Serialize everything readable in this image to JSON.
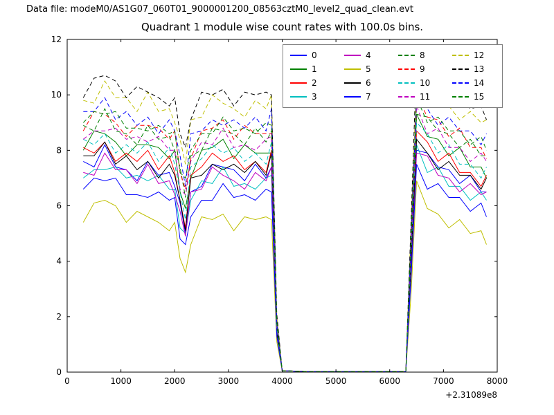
{
  "header": {
    "data_file": "Data file: modeM0/AS1G07_060T01_9000001200_08563cztM0_level2_quad_clean.evt"
  },
  "chart_data": {
    "type": "line",
    "title": "Quadrant 1 module wise count rates with 100.0s bins.",
    "xlabel": "",
    "ylabel": "",
    "xlim": [
      0,
      8000
    ],
    "ylim": [
      0,
      12
    ],
    "xticks": [
      "0",
      "1000",
      "2000",
      "3000",
      "4000",
      "5000",
      "6000",
      "7000",
      "8000"
    ],
    "yticks": [
      "0",
      "2",
      "4",
      "6",
      "8",
      "10",
      "12"
    ],
    "x_offset_label": "+2.31089e8",
    "grid": false,
    "legend_position": "upper center, 4 columns",
    "legend_columns": 4,
    "x": [
      300,
      500,
      700,
      900,
      1100,
      1300,
      1500,
      1700,
      1900,
      2000,
      2100,
      2200,
      2300,
      2500,
      2700,
      2900,
      3100,
      3300,
      3500,
      3700,
      3800,
      3900,
      4000,
      4500,
      5000,
      5500,
      6000,
      6300,
      6400,
      6500,
      6700,
      6900,
      7100,
      7300,
      7500,
      7700,
      7800
    ],
    "series": [
      {
        "name": "0",
        "color": "#0000ff",
        "style": "solid",
        "values": [
          7.6,
          7.4,
          8.2,
          7.4,
          7.3,
          6.9,
          7.6,
          7.1,
          7.2,
          6.7,
          6.1,
          5.0,
          6.5,
          6.7,
          7.5,
          7.4,
          7.3,
          6.9,
          7.5,
          7.0,
          7.4,
          1.5,
          0.05,
          0.02,
          0.02,
          0.02,
          0.02,
          0.02,
          4.0,
          8.0,
          7.9,
          7.4,
          7.3,
          6.8,
          7.1,
          6.5,
          6.5
        ]
      },
      {
        "name": "1",
        "color": "#008000",
        "style": "solid",
        "values": [
          8.0,
          8.7,
          8.6,
          8.3,
          7.8,
          8.2,
          8.2,
          8.1,
          7.7,
          8.0,
          6.5,
          5.9,
          7.0,
          8.0,
          8.1,
          8.4,
          7.7,
          8.2,
          7.9,
          7.9,
          7.9,
          1.6,
          0.05,
          0.02,
          0.02,
          0.02,
          0.02,
          0.02,
          4.4,
          9.3,
          8.5,
          8.4,
          7.8,
          8.1,
          7.4,
          7.4,
          7.0
        ]
      },
      {
        "name": "2",
        "color": "#ff0000",
        "style": "solid",
        "values": [
          8.1,
          7.9,
          8.3,
          7.6,
          7.9,
          7.6,
          8.0,
          7.3,
          7.8,
          7.2,
          6.2,
          5.2,
          7.1,
          7.4,
          7.9,
          7.6,
          7.8,
          7.3,
          7.6,
          7.2,
          8.0,
          1.5,
          0.05,
          0.02,
          0.02,
          0.02,
          0.02,
          0.02,
          4.2,
          8.7,
          8.3,
          7.6,
          7.9,
          7.2,
          7.2,
          6.7,
          7.1
        ]
      },
      {
        "name": "3",
        "color": "#00bfbf",
        "style": "solid",
        "values": [
          7.0,
          7.3,
          7.3,
          7.4,
          7.0,
          7.1,
          6.9,
          7.1,
          6.6,
          6.6,
          5.2,
          5.0,
          6.2,
          6.9,
          6.8,
          7.4,
          6.7,
          6.8,
          6.6,
          7.0,
          7.1,
          1.4,
          0.05,
          0.02,
          0.02,
          0.02,
          0.02,
          0.02,
          3.8,
          8.2,
          7.2,
          7.4,
          6.7,
          6.7,
          6.2,
          6.5,
          6.2
        ]
      },
      {
        "name": "4",
        "color": "#bf00bf",
        "style": "solid",
        "values": [
          7.2,
          7.1,
          7.9,
          7.3,
          7.3,
          6.8,
          7.5,
          6.8,
          6.9,
          6.4,
          5.8,
          4.9,
          6.5,
          6.6,
          7.4,
          7.1,
          6.9,
          6.6,
          7.2,
          6.9,
          7.4,
          1.4,
          0.05,
          0.02,
          0.02,
          0.02,
          0.02,
          0.02,
          3.8,
          7.9,
          7.8,
          7.1,
          7.0,
          6.5,
          6.8,
          6.4,
          6.5
        ]
      },
      {
        "name": "5",
        "color": "#bfbf00",
        "style": "solid",
        "values": [
          5.4,
          6.1,
          6.2,
          6.0,
          5.4,
          5.8,
          5.6,
          5.4,
          5.1,
          5.4,
          4.1,
          3.6,
          4.6,
          5.6,
          5.5,
          5.7,
          5.1,
          5.6,
          5.5,
          5.6,
          5.5,
          1.1,
          0.05,
          0.02,
          0.02,
          0.02,
          0.02,
          0.02,
          2.9,
          6.9,
          5.9,
          5.7,
          5.2,
          5.5,
          5.0,
          5.1,
          4.6
        ]
      },
      {
        "name": "6",
        "color": "#000000",
        "style": "solid",
        "values": [
          7.8,
          7.8,
          8.3,
          7.5,
          7.8,
          7.3,
          7.6,
          7.0,
          7.5,
          7.1,
          6.2,
          5.1,
          7.0,
          7.1,
          7.5,
          7.3,
          7.5,
          7.2,
          7.6,
          7.1,
          7.9,
          1.5,
          0.05,
          0.02,
          0.02,
          0.02,
          0.02,
          0.02,
          4.1,
          8.4,
          7.9,
          7.3,
          7.6,
          7.1,
          7.1,
          6.6,
          7.0
        ]
      },
      {
        "name": "7",
        "color": "#0000ff",
        "style": "solid",
        "values": [
          6.6,
          7.0,
          6.9,
          7.0,
          6.4,
          6.4,
          6.3,
          6.5,
          6.2,
          6.3,
          4.8,
          4.6,
          5.6,
          6.2,
          6.2,
          6.8,
          6.3,
          6.4,
          6.2,
          6.6,
          6.5,
          1.3,
          0.05,
          0.02,
          0.02,
          0.02,
          0.02,
          0.02,
          3.5,
          7.5,
          6.6,
          6.8,
          6.3,
          6.3,
          5.8,
          6.1,
          5.6
        ]
      },
      {
        "name": "8",
        "color": "#008000",
        "style": "dashed",
        "values": [
          8.9,
          8.7,
          9.5,
          8.7,
          8.6,
          8.2,
          8.9,
          8.4,
          8.5,
          8.0,
          7.4,
          6.3,
          7.8,
          8.0,
          8.8,
          8.7,
          8.6,
          8.2,
          8.8,
          8.3,
          8.7,
          1.7,
          0.05,
          0.02,
          0.02,
          0.02,
          0.02,
          0.02,
          4.7,
          9.3,
          9.2,
          8.7,
          8.6,
          8.1,
          8.4,
          7.8,
          7.8
        ]
      },
      {
        "name": "9",
        "color": "#ff0000",
        "style": "dashed",
        "values": [
          8.7,
          9.4,
          9.3,
          9.0,
          8.5,
          8.9,
          8.9,
          8.8,
          8.4,
          8.7,
          7.2,
          6.6,
          7.7,
          8.7,
          8.8,
          9.1,
          8.4,
          8.9,
          8.6,
          8.6,
          8.6,
          1.8,
          0.05,
          0.02,
          0.02,
          0.02,
          0.02,
          0.02,
          4.9,
          10.0,
          9.2,
          9.1,
          8.5,
          8.8,
          8.1,
          8.1,
          7.7
        ]
      },
      {
        "name": "10",
        "color": "#00bfbf",
        "style": "dashed",
        "values": [
          8.4,
          8.2,
          8.6,
          7.9,
          8.2,
          7.9,
          8.3,
          7.6,
          8.1,
          7.5,
          6.5,
          5.5,
          7.4,
          7.7,
          8.2,
          7.9,
          8.1,
          7.6,
          7.9,
          7.5,
          8.3,
          1.6,
          0.05,
          0.02,
          0.02,
          0.02,
          0.02,
          0.02,
          4.4,
          9.0,
          8.6,
          7.9,
          8.2,
          7.5,
          7.5,
          7.0,
          7.4
        ]
      },
      {
        "name": "11",
        "color": "#bf00bf",
        "style": "dashed",
        "values": [
          8.4,
          8.7,
          8.7,
          8.8,
          8.4,
          8.5,
          8.3,
          8.5,
          8.0,
          8.0,
          6.6,
          6.4,
          7.6,
          8.3,
          8.2,
          8.8,
          8.1,
          8.2,
          8.0,
          8.4,
          8.5,
          1.7,
          0.05,
          0.02,
          0.02,
          0.02,
          0.02,
          0.02,
          4.6,
          9.6,
          8.6,
          8.8,
          8.1,
          8.1,
          7.6,
          7.9,
          7.6
        ]
      },
      {
        "name": "12",
        "color": "#bfbf00",
        "style": "dashed",
        "values": [
          9.8,
          9.7,
          10.5,
          9.9,
          9.9,
          9.4,
          10.1,
          9.4,
          9.5,
          9.0,
          8.4,
          7.5,
          9.1,
          9.2,
          10.0,
          9.7,
          9.5,
          9.2,
          9.8,
          9.5,
          10.0,
          2.0,
          0.05,
          0.02,
          0.02,
          0.02,
          0.02,
          0.02,
          5.4,
          10.5,
          10.4,
          9.7,
          9.6,
          9.1,
          9.4,
          9.0,
          9.1
        ]
      },
      {
        "name": "13",
        "color": "#000000",
        "style": "dashed",
        "values": [
          9.9,
          10.6,
          10.7,
          10.5,
          9.9,
          10.3,
          10.1,
          9.9,
          9.6,
          9.9,
          8.6,
          8.1,
          9.1,
          10.1,
          10.0,
          10.2,
          9.6,
          10.1,
          10.0,
          10.1,
          10.0,
          2.1,
          0.05,
          0.02,
          0.02,
          0.02,
          0.02,
          0.02,
          5.6,
          11.4,
          10.4,
          10.2,
          9.7,
          10.0,
          9.5,
          9.6,
          9.1
        ]
      },
      {
        "name": "14",
        "color": "#0000ff",
        "style": "dashed",
        "values": [
          9.4,
          9.4,
          9.9,
          9.1,
          9.4,
          8.9,
          9.2,
          8.6,
          9.1,
          8.7,
          7.8,
          6.7,
          8.6,
          8.7,
          9.1,
          8.9,
          9.1,
          8.8,
          9.2,
          8.7,
          9.5,
          1.8,
          0.05,
          0.02,
          0.02,
          0.02,
          0.02,
          0.02,
          5.0,
          10.0,
          9.5,
          8.9,
          9.2,
          8.7,
          8.7,
          8.2,
          8.6
        ]
      },
      {
        "name": "15",
        "color": "#008000",
        "style": "dashed",
        "values": [
          9.0,
          9.4,
          9.3,
          9.4,
          8.8,
          8.8,
          8.7,
          8.9,
          8.6,
          8.7,
          7.2,
          7.0,
          8.0,
          8.6,
          8.6,
          9.2,
          8.7,
          8.8,
          8.6,
          9.0,
          8.9,
          1.8,
          0.05,
          0.02,
          0.02,
          0.02,
          0.02,
          0.02,
          4.9,
          9.9,
          9.0,
          9.2,
          8.7,
          8.7,
          8.2,
          8.5,
          8.0
        ]
      }
    ]
  }
}
